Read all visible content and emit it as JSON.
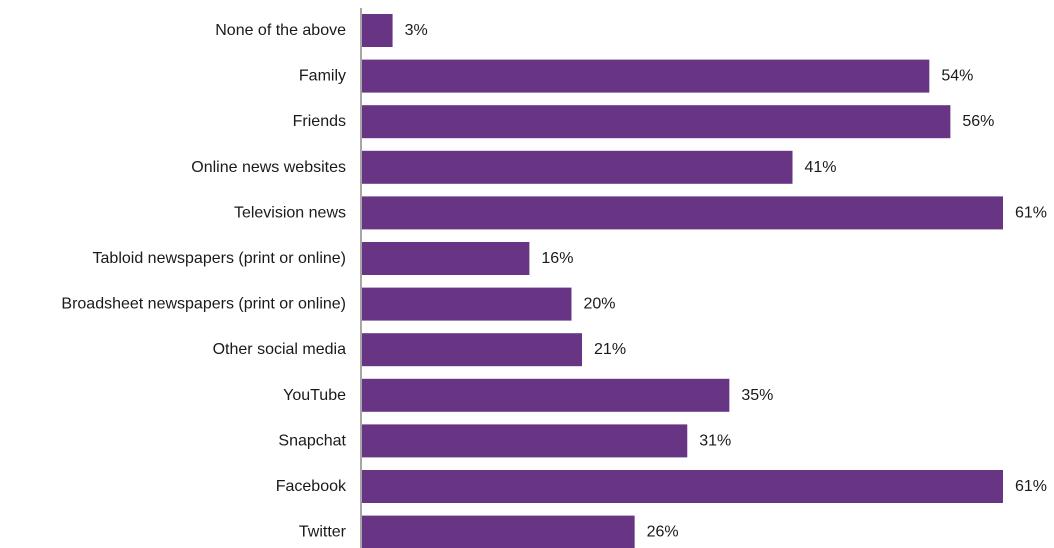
{
  "chart_data": {
    "type": "bar",
    "orientation": "horizontal",
    "categories": [
      "None of the above",
      "Family",
      "Friends",
      "Online news websites",
      "Television news",
      "Tabloid newspapers (print or online)",
      "Broadsheet newspapers (print or online)",
      "Other social media",
      "YouTube",
      "Snapchat",
      "Facebook",
      "Twitter"
    ],
    "values": [
      3,
      54,
      56,
      41,
      61,
      16,
      20,
      21,
      35,
      31,
      61,
      26
    ],
    "value_labels": [
      "3%",
      "54%",
      "56%",
      "41%",
      "61%",
      "16%",
      "20%",
      "21%",
      "35%",
      "31%",
      "61%",
      "26%"
    ],
    "bar_color": "#683584",
    "axis_color": "#a6a6a6",
    "xlim": [
      0,
      61
    ],
    "grid": false,
    "legend": "none"
  }
}
